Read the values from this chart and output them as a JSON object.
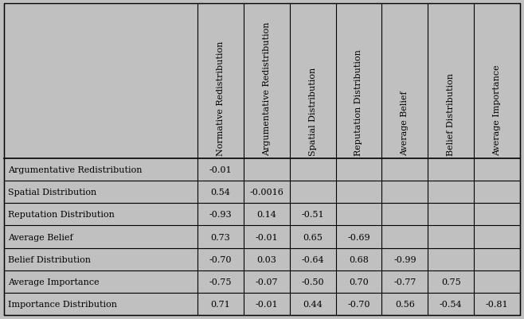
{
  "col_headers": [
    "Normative Redistribution",
    "Argumentative Redistribution",
    "Spatial Distribution",
    "Reputation Distribution",
    "Average Belief",
    "Belief Distribution",
    "Average Importance"
  ],
  "row_headers": [
    "Argumentative Redistribution",
    "Spatial Distribution",
    "Reputation Distribution",
    "Average Belief",
    "Belief Distribution",
    "Average Importance",
    "Importance Distribution"
  ],
  "cell_data": [
    [
      "-0.01",
      "",
      "",
      "",
      "",
      "",
      ""
    ],
    [
      "0.54",
      "-0.0016",
      "",
      "",
      "",
      "",
      ""
    ],
    [
      "-0.93",
      "0.14",
      "-0.51",
      "",
      "",
      "",
      ""
    ],
    [
      "0.73",
      "-0.01",
      "0.65",
      "-0.69",
      "",
      "",
      ""
    ],
    [
      "-0.70",
      "0.03",
      "-0.64",
      "0.68",
      "-0.99",
      "",
      ""
    ],
    [
      "-0.75",
      "-0.07",
      "-0.50",
      "0.70",
      "-0.77",
      "0.75",
      ""
    ],
    [
      "0.71",
      "-0.01",
      "0.44",
      "-0.70",
      "0.56",
      "-0.54",
      "-0.81"
    ]
  ],
  "background_color": "#c0c0c0",
  "line_color": "#000000",
  "text_color": "#000000",
  "font_size": 8.0,
  "header_font_size": 8.0
}
